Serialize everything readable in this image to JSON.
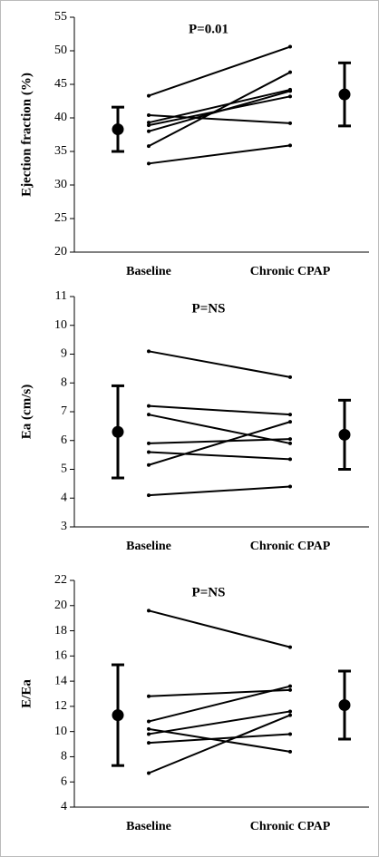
{
  "chart_data": [
    {
      "type": "paired",
      "annotation": "P=0.01",
      "ylabel": "Ejection fraction (%)",
      "categories": [
        "Baseline",
        "Chronic CPAP"
      ],
      "color": "#000000",
      "series": [
        {
          "values": [
            43.3,
            50.6
          ]
        },
        {
          "values": [
            40.4,
            39.2
          ]
        },
        {
          "values": [
            39.3,
            44.2
          ]
        },
        {
          "values": [
            38.9,
            43.2
          ]
        },
        {
          "values": [
            38.0,
            44.0
          ]
        },
        {
          "values": [
            35.8,
            46.8
          ]
        },
        {
          "values": [
            33.2,
            35.9
          ]
        }
      ],
      "mean": [
        38.3,
        43.5
      ],
      "error": [
        3.3,
        4.7
      ],
      "ylim": [
        20,
        55
      ],
      "yticks": [
        20,
        25,
        30,
        35,
        40,
        45,
        50,
        55
      ]
    },
    {
      "type": "paired",
      "annotation": "P=NS",
      "ylabel": "Ea (cm/s)",
      "categories": [
        "Baseline",
        "Chronic CPAP"
      ],
      "color": "#000000",
      "series": [
        {
          "values": [
            9.1,
            8.2
          ]
        },
        {
          "values": [
            7.2,
            6.9
          ]
        },
        {
          "values": [
            6.9,
            5.9
          ]
        },
        {
          "values": [
            5.9,
            6.05
          ]
        },
        {
          "values": [
            5.6,
            5.35
          ]
        },
        {
          "values": [
            5.15,
            6.65
          ]
        },
        {
          "values": [
            4.1,
            4.4
          ]
        }
      ],
      "mean": [
        6.3,
        6.2
      ],
      "error": [
        1.6,
        1.2
      ],
      "ylim": [
        3,
        11
      ],
      "yticks": [
        3,
        4,
        5,
        6,
        7,
        8,
        9,
        10,
        11
      ]
    },
    {
      "type": "paired",
      "annotation": "P=NS",
      "ylabel": "E/Ea",
      "categories": [
        "Baseline",
        "Chronic CPAP"
      ],
      "color": "#000000",
      "series": [
        {
          "values": [
            19.6,
            16.7
          ]
        },
        {
          "values": [
            12.8,
            13.3
          ]
        },
        {
          "values": [
            10.8,
            13.6
          ]
        },
        {
          "values": [
            10.2,
            8.4
          ]
        },
        {
          "values": [
            9.8,
            11.6
          ]
        },
        {
          "values": [
            9.1,
            9.8
          ]
        },
        {
          "values": [
            6.7,
            11.3
          ]
        }
      ],
      "mean": [
        11.3,
        12.1
      ],
      "error": [
        4.0,
        2.7
      ],
      "ylim": [
        4,
        22
      ],
      "yticks": [
        4,
        6,
        8,
        10,
        12,
        14,
        16,
        18,
        20,
        22
      ]
    }
  ]
}
